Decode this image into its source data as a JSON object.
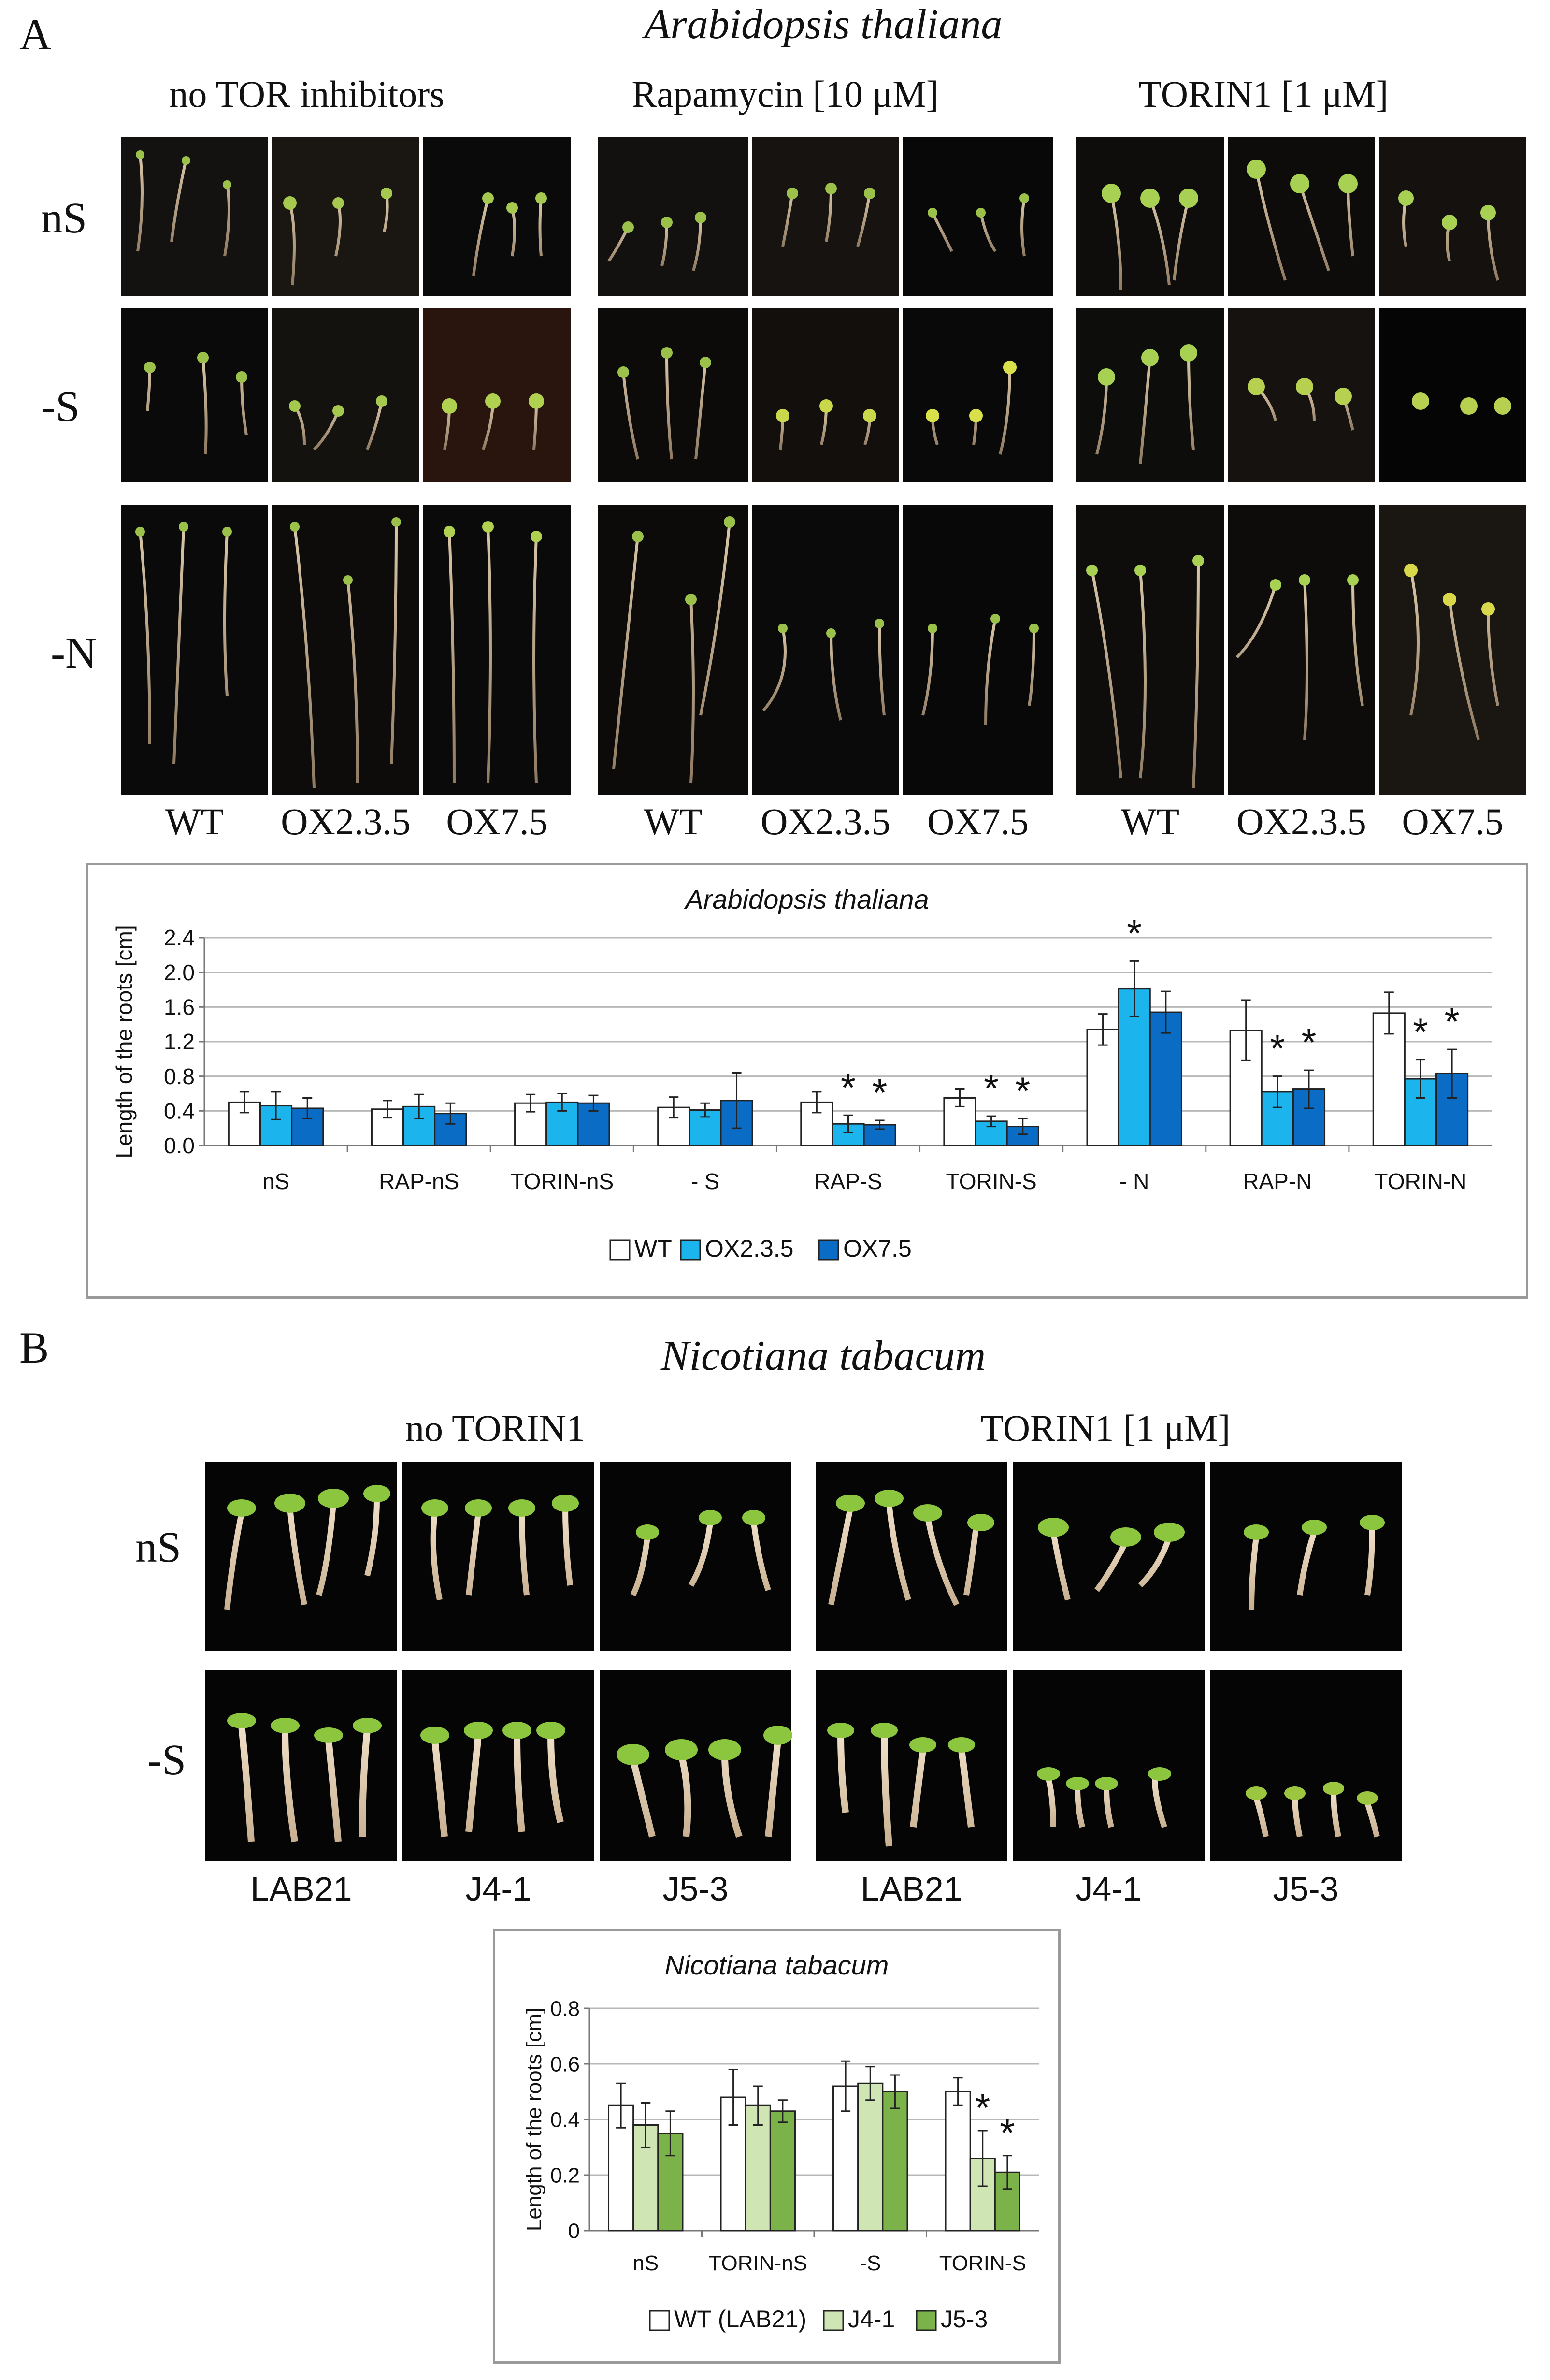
{
  "panel_a": {
    "letter": "A",
    "title": "Arabidopsis thaliana",
    "groups": [
      "no TOR inhibitors",
      "Rapamycin [10 μM]",
      "TORIN1 [1 μM]"
    ],
    "rows": [
      "nS",
      "-S",
      "-N"
    ],
    "columns": [
      "WT",
      "OX2.3.5",
      "OX7.5",
      "WT",
      "OX2.3.5",
      "OX7.5",
      "WT",
      "OX2.3.5",
      "OX7.5"
    ]
  },
  "panel_b": {
    "letter": "B",
    "title": "Nicotiana tabacum",
    "groups": [
      "no TORIN1",
      "TORIN1 [1 μM]"
    ],
    "rows": [
      "nS",
      "-S"
    ],
    "columns": [
      "LAB21",
      "J4-1",
      "J5-3",
      "LAB21",
      "J4-1",
      "J5-3"
    ]
  },
  "chart_data": [
    {
      "type": "bar",
      "title": "Arabidopsis thaliana",
      "xlabel": "",
      "ylabel": "Length of the roots [cm]",
      "ylim": [
        0,
        2.4
      ],
      "yticks": [
        "0.0",
        "0.4",
        "0.8",
        "1.2",
        "1.6",
        "2.0",
        "2.4"
      ],
      "categories": [
        "nS",
        "RAP-nS",
        "TORIN-nS",
        "- S",
        "RAP-S",
        "TORIN-S",
        "- N",
        "RAP-N",
        "TORIN-N"
      ],
      "series": [
        {
          "name": "WT",
          "color": "#ffffff",
          "values": [
            0.5,
            0.42,
            0.49,
            0.44,
            0.5,
            0.55,
            1.34,
            1.33,
            1.53
          ],
          "errors": [
            0.12,
            0.1,
            0.1,
            0.12,
            0.12,
            0.1,
            0.18,
            0.35,
            0.24
          ]
        },
        {
          "name": "OX2.3.5",
          "color": "#1cb4ec",
          "values": [
            0.46,
            0.45,
            0.5,
            0.41,
            0.25,
            0.28,
            1.81,
            0.62,
            0.77
          ],
          "errors": [
            0.16,
            0.14,
            0.1,
            0.08,
            0.1,
            0.06,
            0.32,
            0.18,
            0.22
          ]
        },
        {
          "name": "OX7.5",
          "color": "#0a6cc4",
          "values": [
            0.43,
            0.37,
            0.49,
            0.52,
            0.24,
            0.22,
            1.54,
            0.65,
            0.83
          ],
          "errors": [
            0.12,
            0.12,
            0.09,
            0.32,
            0.05,
            0.09,
            0.24,
            0.22,
            0.28
          ]
        }
      ],
      "significance_marker": "*",
      "annotations": [
        {
          "category": "- N",
          "series": "OX2.3.5",
          "text": "*"
        },
        {
          "category": "RAP-S",
          "series": "OX2.3.5",
          "text": "*"
        },
        {
          "category": "RAP-S",
          "series": "OX7.5",
          "text": "*"
        },
        {
          "category": "TORIN-S",
          "series": "OX2.3.5",
          "text": "*"
        },
        {
          "category": "TORIN-S",
          "series": "OX7.5",
          "text": "*"
        },
        {
          "category": "RAP-N",
          "series": "OX2.3.5",
          "text": "*"
        },
        {
          "category": "RAP-N",
          "series": "OX7.5",
          "text": "*"
        },
        {
          "category": "TORIN-N",
          "series": "OX2.3.5",
          "text": "*"
        },
        {
          "category": "TORIN-N",
          "series": "OX7.5",
          "text": "*"
        }
      ],
      "legend": "bottom"
    },
    {
      "type": "bar",
      "title": "Nicotiana tabacum",
      "xlabel": "",
      "ylabel": "Length of the roots [cm]",
      "ylim": [
        0,
        0.8
      ],
      "yticks": [
        "0",
        "0.2",
        "0.4",
        "0.6",
        "0.8"
      ],
      "categories": [
        "nS",
        "TORIN-nS",
        "-S",
        "TORIN-S"
      ],
      "series": [
        {
          "name": "WT (LAB21)",
          "color": "#ffffff",
          "values": [
            0.45,
            0.48,
            0.52,
            0.5
          ],
          "errors": [
            0.08,
            0.1,
            0.09,
            0.05
          ]
        },
        {
          "name": "J4-1",
          "color": "#cfe5b4",
          "values": [
            0.38,
            0.45,
            0.53,
            0.26
          ],
          "errors": [
            0.08,
            0.07,
            0.06,
            0.1
          ]
        },
        {
          "name": "J5-3",
          "color": "#7bb24a",
          "values": [
            0.35,
            0.43,
            0.5,
            0.21
          ],
          "errors": [
            0.08,
            0.04,
            0.06,
            0.06
          ]
        }
      ],
      "significance_marker": "*",
      "annotations": [
        {
          "category": "TORIN-S",
          "series": "J4-1",
          "text": "*"
        },
        {
          "category": "TORIN-S",
          "series": "J5-3",
          "text": "*"
        }
      ],
      "legend": "bottom"
    }
  ]
}
